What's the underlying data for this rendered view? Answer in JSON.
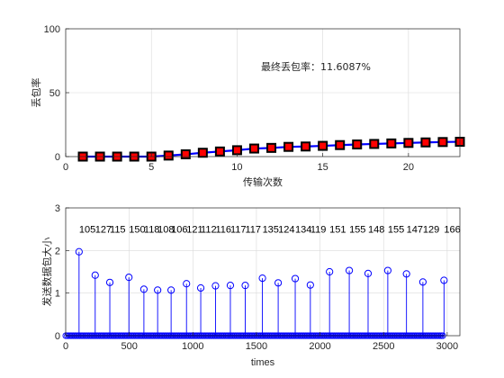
{
  "chart_data": [
    {
      "type": "line",
      "xlabel": "传输次数",
      "ylabel": "丢包率",
      "xlim": [
        0,
        23
      ],
      "ylim": [
        0,
        100
      ],
      "xticks": [
        "0",
        "5",
        "10",
        "15",
        "20"
      ],
      "yticks": [
        "0",
        "50",
        "100"
      ],
      "grid": true,
      "annotation": "最终丢包率：11.6087%",
      "series": [
        {
          "x": [
            1,
            2,
            3,
            4,
            5,
            6,
            7,
            8,
            9,
            10,
            11,
            12,
            13,
            14,
            15,
            16,
            17,
            18,
            19,
            20,
            21,
            22,
            23
          ],
          "y": [
            0,
            0,
            0,
            0,
            0,
            0.8,
            1.8,
            3,
            4,
            5,
            6.3,
            6.8,
            7.6,
            7.9,
            8.4,
            9,
            9.5,
            9.9,
            10.3,
            10.7,
            11.1,
            11.4,
            11.6087
          ],
          "color": "#0000ff",
          "marker_color": "#ff0000",
          "marker_edge": "#000000"
        }
      ]
    },
    {
      "type": "stem",
      "xlabel": "times",
      "ylabel": "发送数据包大小",
      "xlim": [
        0,
        3100
      ],
      "ylim": [
        0,
        3
      ],
      "xticks": [
        "0",
        "500",
        "1000",
        "1500",
        "2000",
        "2500",
        "3000"
      ],
      "yticks": [
        "0",
        "1",
        "2",
        "3"
      ],
      "grid": true,
      "color": "#0000ff",
      "labels": [
        "105",
        "127",
        "115",
        "150",
        "118",
        "108",
        "106",
        "121",
        "112",
        "116",
        "117",
        "117",
        "135",
        "124",
        "134",
        "119",
        "151",
        "155",
        "148",
        "155",
        "147",
        "129",
        "166"
      ],
      "peaks": {
        "x": [
          105,
          232,
          347,
          497,
          615,
          723,
          829,
          950,
          1062,
          1178,
          1295,
          1412,
          1547,
          1671,
          1805,
          1924,
          2075,
          2230,
          2378,
          2533,
          2680,
          2809,
          2975
        ],
        "y": [
          1.97,
          1.42,
          1.25,
          1.37,
          1.09,
          1.07,
          1.07,
          1.22,
          1.12,
          1.17,
          1.18,
          1.18,
          1.35,
          1.24,
          1.34,
          1.19,
          1.5,
          1.53,
          1.46,
          1.53,
          1.45,
          1.26,
          1.3
        ]
      }
    }
  ]
}
